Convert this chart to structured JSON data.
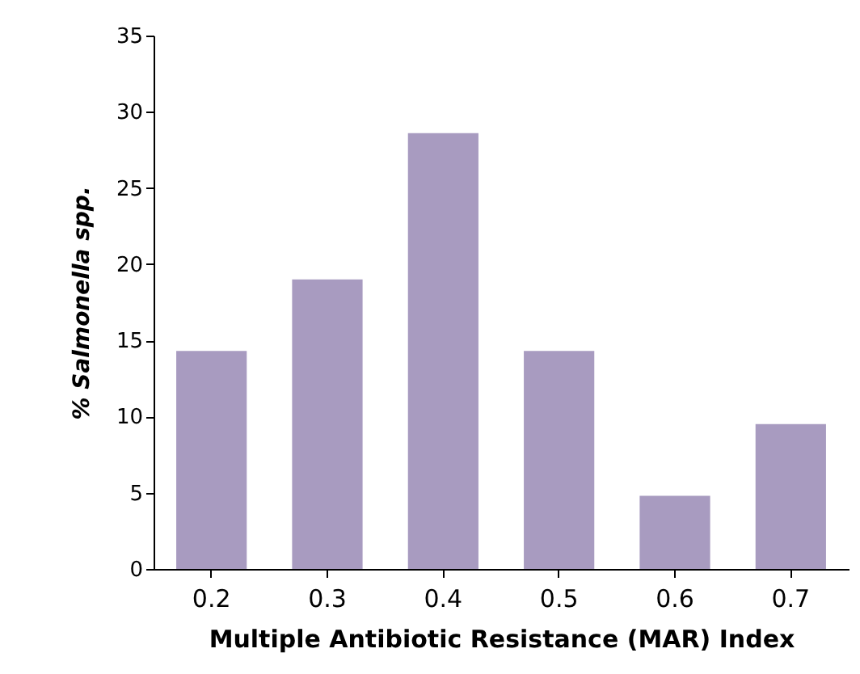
{
  "chart_data": {
    "type": "bar",
    "xlabel": "Multiple Antibiotic Resistance (MAR) Index",
    "ylabel": "% Salmonella spp.",
    "categories": [
      "0.2",
      "0.3",
      "0.4",
      "0.5",
      "0.6",
      "0.7"
    ],
    "values": [
      14.3,
      19.0,
      28.6,
      14.3,
      4.8,
      9.5
    ],
    "color": "#a89bc0",
    "ylim": [
      0,
      35
    ],
    "yticks": [
      0,
      5,
      10,
      15,
      20,
      25,
      30,
      35
    ],
    "grid": false
  }
}
